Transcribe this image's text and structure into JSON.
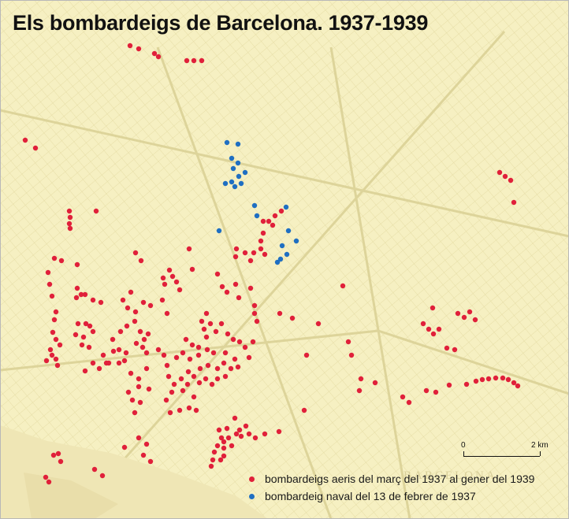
{
  "title": "Els bombardeigs de Barcelona. 1937-1939",
  "background_color": "#f6f0c2",
  "watermark": "BARCELONA",
  "legend": [
    {
      "label": "bombardeigs aeris del març del 1937 al gener del 1939",
      "color": "#e0203a"
    },
    {
      "label": "bombardeig naval del 13 de febrer de 1937",
      "color": "#1f6fc2"
    }
  ],
  "scale": {
    "start_label": "0",
    "end_label": "2 km"
  },
  "points": {
    "aerial": [
      [
        165,
        58
      ],
      [
        176,
        62
      ],
      [
        196,
        68
      ],
      [
        201,
        72
      ],
      [
        237,
        77
      ],
      [
        246,
        77
      ],
      [
        256,
        77
      ],
      [
        32,
        178
      ],
      [
        45,
        188
      ],
      [
        634,
        219
      ],
      [
        641,
        224
      ],
      [
        648,
        229
      ],
      [
        652,
        257
      ],
      [
        88,
        268
      ],
      [
        89,
        276
      ],
      [
        88,
        284
      ],
      [
        89,
        290
      ],
      [
        122,
        268
      ],
      [
        357,
        268
      ],
      [
        334,
        281
      ],
      [
        341,
        281
      ],
      [
        349,
        274
      ],
      [
        346,
        286
      ],
      [
        334,
        296
      ],
      [
        331,
        306
      ],
      [
        300,
        316
      ],
      [
        311,
        321
      ],
      [
        322,
        321
      ],
      [
        331,
        316
      ],
      [
        336,
        323
      ],
      [
        318,
        331
      ],
      [
        299,
        326
      ],
      [
        240,
        316
      ],
      [
        244,
        342
      ],
      [
        215,
        343
      ],
      [
        207,
        353
      ],
      [
        219,
        351
      ],
      [
        224,
        358
      ],
      [
        209,
        361
      ],
      [
        228,
        368
      ],
      [
        172,
        321
      ],
      [
        179,
        331
      ],
      [
        69,
        328
      ],
      [
        78,
        331
      ],
      [
        98,
        336
      ],
      [
        61,
        346
      ],
      [
        63,
        361
      ],
      [
        66,
        376
      ],
      [
        71,
        396
      ],
      [
        69,
        406
      ],
      [
        67,
        422
      ],
      [
        98,
        366
      ],
      [
        103,
        374
      ],
      [
        108,
        374
      ],
      [
        97,
        378
      ],
      [
        118,
        381
      ],
      [
        128,
        384
      ],
      [
        276,
        348
      ],
      [
        282,
        364
      ],
      [
        299,
        361
      ],
      [
        288,
        371
      ],
      [
        303,
        378
      ],
      [
        318,
        366
      ],
      [
        323,
        388
      ],
      [
        323,
        398
      ],
      [
        326,
        408
      ],
      [
        355,
        398
      ],
      [
        371,
        404
      ],
      [
        404,
        411
      ],
      [
        166,
        371
      ],
      [
        156,
        381
      ],
      [
        162,
        391
      ],
      [
        172,
        396
      ],
      [
        182,
        384
      ],
      [
        191,
        388
      ],
      [
        206,
        381
      ],
      [
        212,
        398
      ],
      [
        99,
        411
      ],
      [
        109,
        411
      ],
      [
        114,
        414
      ],
      [
        118,
        421
      ],
      [
        106,
        428
      ],
      [
        96,
        425
      ],
      [
        104,
        438
      ],
      [
        113,
        441
      ],
      [
        71,
        431
      ],
      [
        76,
        438
      ],
      [
        64,
        444
      ],
      [
        66,
        451
      ],
      [
        59,
        458
      ],
      [
        71,
        456
      ],
      [
        73,
        464
      ],
      [
        153,
        421
      ],
      [
        161,
        414
      ],
      [
        171,
        408
      ],
      [
        178,
        421
      ],
      [
        183,
        431
      ],
      [
        188,
        424
      ],
      [
        181,
        441
      ],
      [
        186,
        448
      ],
      [
        173,
        436
      ],
      [
        143,
        431
      ],
      [
        144,
        446
      ],
      [
        151,
        444
      ],
      [
        160,
        448
      ],
      [
        158,
        458
      ],
      [
        151,
        461
      ],
      [
        138,
        461
      ],
      [
        131,
        451
      ],
      [
        118,
        461
      ],
      [
        126,
        468
      ],
      [
        135,
        461
      ],
      [
        108,
        471
      ],
      [
        201,
        444
      ],
      [
        208,
        451
      ],
      [
        236,
        431
      ],
      [
        244,
        438
      ],
      [
        252,
        441
      ],
      [
        262,
        428
      ],
      [
        259,
        418
      ],
      [
        256,
        408
      ],
      [
        262,
        398
      ],
      [
        267,
        411
      ],
      [
        274,
        421
      ],
      [
        281,
        411
      ],
      [
        289,
        424
      ],
      [
        296,
        431
      ],
      [
        304,
        434
      ],
      [
        311,
        441
      ],
      [
        321,
        434
      ],
      [
        316,
        454
      ],
      [
        298,
        456
      ],
      [
        286,
        448
      ],
      [
        271,
        448
      ],
      [
        263,
        444
      ],
      [
        252,
        451
      ],
      [
        241,
        456
      ],
      [
        232,
        448
      ],
      [
        224,
        454
      ],
      [
        212,
        464
      ],
      [
        214,
        478
      ],
      [
        221,
        488
      ],
      [
        230,
        481
      ],
      [
        238,
        488
      ],
      [
        246,
        478
      ],
      [
        253,
        486
      ],
      [
        261,
        481
      ],
      [
        269,
        488
      ],
      [
        276,
        481
      ],
      [
        286,
        478
      ],
      [
        293,
        468
      ],
      [
        302,
        466
      ],
      [
        284,
        461
      ],
      [
        276,
        468
      ],
      [
        264,
        464
      ],
      [
        254,
        468
      ],
      [
        239,
        472
      ],
      [
        218,
        498
      ],
      [
        232,
        496
      ],
      [
        246,
        504
      ],
      [
        211,
        508
      ],
      [
        189,
        494
      ],
      [
        176,
        491
      ],
      [
        163,
        498
      ],
      [
        168,
        508
      ],
      [
        178,
        511
      ],
      [
        186,
        468
      ],
      [
        176,
        481
      ],
      [
        166,
        474
      ],
      [
        216,
        524
      ],
      [
        228,
        521
      ],
      [
        240,
        518
      ],
      [
        249,
        521
      ],
      [
        171,
        524
      ],
      [
        176,
        556
      ],
      [
        186,
        564
      ],
      [
        182,
        578
      ],
      [
        191,
        586
      ],
      [
        158,
        568
      ],
      [
        74,
        576
      ],
      [
        68,
        578
      ],
      [
        77,
        586
      ],
      [
        120,
        596
      ],
      [
        130,
        604
      ],
      [
        58,
        606
      ],
      [
        62,
        612
      ],
      [
        298,
        531
      ],
      [
        288,
        544
      ],
      [
        278,
        546
      ],
      [
        281,
        556
      ],
      [
        276,
        566
      ],
      [
        272,
        574
      ],
      [
        270,
        584
      ],
      [
        268,
        592
      ],
      [
        284,
        561
      ],
      [
        284,
        569
      ],
      [
        284,
        579
      ],
      [
        280,
        584
      ],
      [
        290,
        556
      ],
      [
        294,
        566
      ],
      [
        300,
        551
      ],
      [
        306,
        554
      ],
      [
        316,
        551
      ],
      [
        312,
        541
      ],
      [
        304,
        546
      ],
      [
        324,
        556
      ],
      [
        336,
        551
      ],
      [
        354,
        548
      ],
      [
        386,
        521
      ],
      [
        435,
        363
      ],
      [
        389,
        451
      ],
      [
        442,
        434
      ],
      [
        446,
        451
      ],
      [
        458,
        481
      ],
      [
        456,
        496
      ],
      [
        476,
        486
      ],
      [
        511,
        504
      ],
      [
        519,
        511
      ],
      [
        537,
        411
      ],
      [
        544,
        418
      ],
      [
        550,
        424
      ],
      [
        557,
        418
      ],
      [
        549,
        391
      ],
      [
        541,
        496
      ],
      [
        553,
        498
      ],
      [
        570,
        489
      ],
      [
        567,
        442
      ],
      [
        577,
        444
      ],
      [
        581,
        398
      ],
      [
        589,
        403
      ],
      [
        596,
        396
      ],
      [
        603,
        406
      ],
      [
        592,
        488
      ],
      [
        604,
        484
      ],
      [
        612,
        482
      ],
      [
        620,
        481
      ],
      [
        629,
        480
      ],
      [
        638,
        480
      ],
      [
        645,
        482
      ],
      [
        652,
        486
      ],
      [
        657,
        490
      ]
    ],
    "naval": [
      [
        288,
        181
      ],
      [
        302,
        183
      ],
      [
        294,
        201
      ],
      [
        302,
        207
      ],
      [
        296,
        214
      ],
      [
        311,
        219
      ],
      [
        303,
        224
      ],
      [
        294,
        231
      ],
      [
        286,
        233
      ],
      [
        298,
        237
      ],
      [
        306,
        233
      ],
      [
        323,
        261
      ],
      [
        326,
        274
      ],
      [
        363,
        263
      ],
      [
        278,
        293
      ],
      [
        366,
        293
      ],
      [
        376,
        306
      ],
      [
        358,
        312
      ],
      [
        364,
        323
      ],
      [
        356,
        329
      ],
      [
        352,
        333
      ]
    ]
  }
}
